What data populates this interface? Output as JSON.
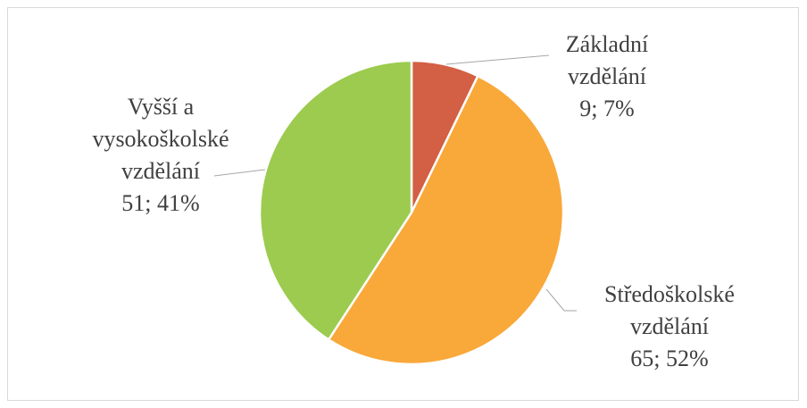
{
  "chart_data": {
    "type": "pie",
    "categories": [
      "Základní vzdělání",
      "Středoškolské vzdělání",
      "Vyšší a vysokoškolské vzdělání"
    ],
    "values": [
      9,
      65,
      51
    ],
    "value_labels": [
      "9; 7%",
      "65; 52%",
      "51; 41%"
    ],
    "colors": [
      "#d35f44",
      "#f9a83a",
      "#9ccb4f"
    ]
  }
}
